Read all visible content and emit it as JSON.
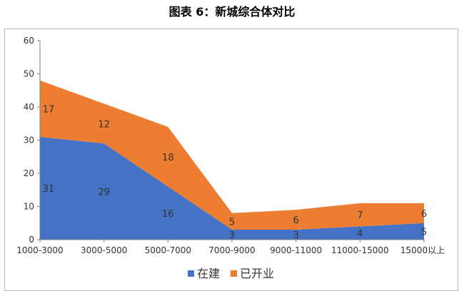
{
  "page_title": "图表 6：新城综合体对比",
  "colors": {
    "series_0": "#4472c4",
    "series_1": "#ed7d31"
  },
  "chart_data": {
    "type": "area",
    "stacked": true,
    "categories": [
      "1000-3000",
      "3000-5000",
      "5000-7000",
      "7000-9000",
      "9000-11000",
      "11000-15000",
      "15000以上"
    ],
    "series": [
      {
        "name": "在建",
        "values": [
          31,
          29,
          16,
          3,
          3,
          4,
          5
        ]
      },
      {
        "name": "已开业",
        "values": [
          17,
          12,
          18,
          5,
          6,
          7,
          6
        ]
      }
    ],
    "ylim": [
      0,
      60
    ],
    "yticks": [
      0,
      10,
      20,
      30,
      40,
      50,
      60
    ],
    "grid": false,
    "legend_position": "bottom"
  }
}
